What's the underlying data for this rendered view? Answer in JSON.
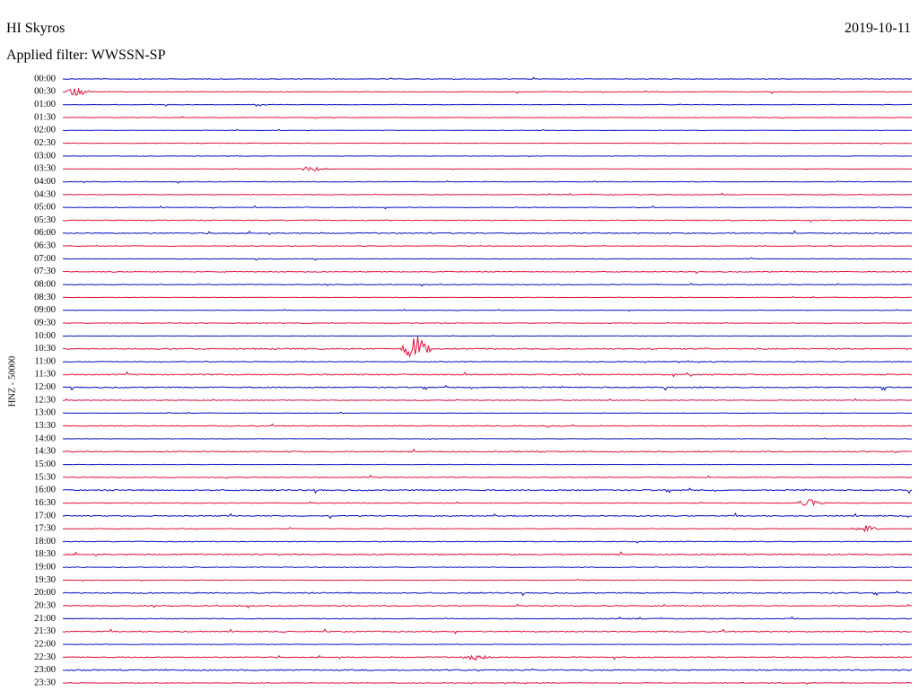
{
  "header": {
    "station": "HI Skyros",
    "date": "2019-10-11",
    "filter": "Applied filter: WWSSN-SP"
  },
  "axis_label": "HNZ - 50000",
  "rows": [
    "00:00",
    "00:30",
    "01:00",
    "01:30",
    "02:00",
    "02:30",
    "03:00",
    "03:30",
    "04:00",
    "04:30",
    "05:00",
    "05:30",
    "06:00",
    "06:30",
    "07:00",
    "07:30",
    "08:00",
    "08:30",
    "09:00",
    "09:30",
    "10:00",
    "10:30",
    "11:00",
    "11:30",
    "12:00",
    "12:30",
    "13:00",
    "13:30",
    "14:00",
    "14:30",
    "15:00",
    "15:30",
    "16:00",
    "16:30",
    "17:00",
    "17:30",
    "18:00",
    "18:30",
    "19:00",
    "19:30",
    "20:00",
    "20:30",
    "21:00",
    "21:30",
    "22:00",
    "22:30",
    "23:00",
    "23:30"
  ]
}
